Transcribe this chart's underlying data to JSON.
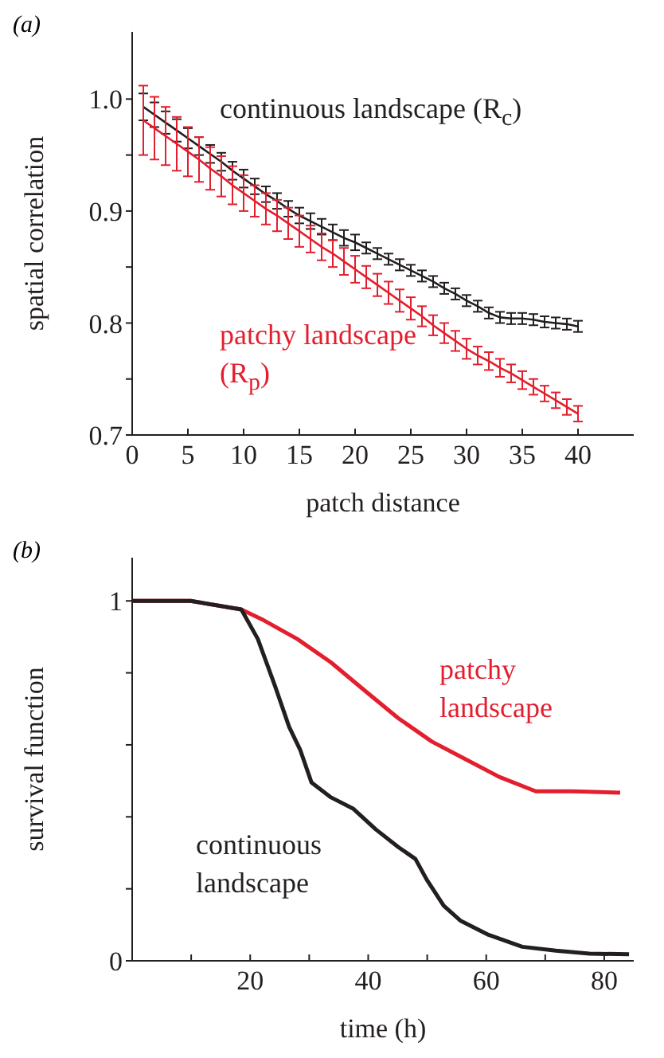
{
  "chart_data": [
    {
      "type": "line",
      "title": "(a)",
      "xlabel": "patch distance",
      "ylabel": "spatial correlation",
      "xlim": [
        0,
        45
      ],
      "xticks": [
        0,
        5,
        10,
        15,
        20,
        25,
        30,
        35,
        40
      ],
      "ylim": [
        0.7,
        1.06
      ],
      "yticks": [
        0.7,
        {
          "value": 0.75,
          "label": null
        },
        0.8,
        {
          "value": 0.85,
          "label": null
        },
        0.9,
        {
          "value": 0.95,
          "label": null
        },
        {
          "value": 1.0,
          "label": "1.0"
        }
      ],
      "series": [
        {
          "name": "continuous landscape (R$_{c}$)",
          "color": "#231f20",
          "x": [
            1,
            2,
            3,
            4,
            5,
            6,
            7,
            8,
            9,
            10,
            11,
            12,
            13,
            14,
            15,
            16,
            17,
            18,
            19,
            20,
            21,
            22,
            23,
            24,
            25,
            26,
            27,
            28,
            29,
            30,
            31,
            32,
            33,
            34,
            35,
            36,
            37,
            38,
            39,
            40
          ],
          "values": [
            0.993,
            0.986,
            0.979,
            0.972,
            0.965,
            0.958,
            0.951,
            0.944,
            0.936,
            0.929,
            0.922,
            0.915,
            0.909,
            0.902,
            0.896,
            0.891,
            0.886,
            0.881,
            0.876,
            0.872,
            0.867,
            0.862,
            0.857,
            0.852,
            0.847,
            0.842,
            0.837,
            0.831,
            0.826,
            0.82,
            0.815,
            0.809,
            0.805,
            0.804,
            0.804,
            0.803,
            0.801,
            0.8,
            0.799,
            0.797
          ],
          "errors": [
            0.012,
            0.011,
            0.01,
            0.01,
            0.009,
            0.008,
            0.008,
            0.008,
            0.008,
            0.008,
            0.007,
            0.007,
            0.007,
            0.007,
            0.007,
            0.007,
            0.007,
            0.007,
            0.007,
            0.007,
            0.005,
            0.005,
            0.005,
            0.005,
            0.005,
            0.005,
            0.005,
            0.005,
            0.005,
            0.005,
            0.005,
            0.005,
            0.005,
            0.005,
            0.005,
            0.005,
            0.005,
            0.005,
            0.005,
            0.005
          ]
        },
        {
          "name": "patchy landscape (R$_{p}$)",
          "color": "#e31e2d",
          "x": [
            1,
            2,
            3,
            4,
            5,
            6,
            7,
            8,
            9,
            10,
            11,
            12,
            13,
            14,
            15,
            16,
            17,
            18,
            19,
            20,
            21,
            22,
            23,
            24,
            25,
            26,
            27,
            28,
            29,
            30,
            31,
            32,
            33,
            34,
            35,
            36,
            37,
            38,
            39,
            40
          ],
          "values": [
            0.981,
            0.974,
            0.967,
            0.96,
            0.953,
            0.946,
            0.938,
            0.931,
            0.923,
            0.916,
            0.909,
            0.902,
            0.896,
            0.889,
            0.882,
            0.875,
            0.868,
            0.862,
            0.855,
            0.848,
            0.841,
            0.834,
            0.827,
            0.82,
            0.813,
            0.806,
            0.798,
            0.791,
            0.784,
            0.777,
            0.771,
            0.766,
            0.76,
            0.755,
            0.749,
            0.743,
            0.737,
            0.731,
            0.725,
            0.719
          ],
          "errors": [
            0.031,
            0.028,
            0.026,
            0.024,
            0.022,
            0.02,
            0.019,
            0.018,
            0.017,
            0.016,
            0.014,
            0.014,
            0.014,
            0.014,
            0.014,
            0.012,
            0.012,
            0.012,
            0.012,
            0.012,
            0.01,
            0.01,
            0.01,
            0.01,
            0.01,
            0.009,
            0.009,
            0.009,
            0.009,
            0.009,
            0.008,
            0.008,
            0.008,
            0.008,
            0.008,
            0.007,
            0.007,
            0.007,
            0.007,
            0.007
          ]
        }
      ]
    },
    {
      "type": "line",
      "title": "(b)",
      "xlabel": "time (h)",
      "ylabel": "survival function",
      "xlim": [
        0,
        85
      ],
      "xticks": [
        {
          "value": 0,
          "label": null
        },
        {
          "value": 10,
          "label": null
        },
        20,
        {
          "value": 30,
          "label": null
        },
        40,
        {
          "value": 50,
          "label": null
        },
        60,
        {
          "value": 70,
          "label": null
        },
        80
      ],
      "ylim": [
        0,
        1.12
      ],
      "yticks": [
        0,
        {
          "value": 0.2,
          "label": null
        },
        {
          "value": 0.4,
          "label": null
        },
        {
          "value": 0.6,
          "label": null
        },
        {
          "value": 0.8,
          "label": null
        },
        1
      ],
      "series": [
        {
          "name": "patchy landscape",
          "color": "#e31e2d",
          "x": [
            0,
            9.9,
            18.5,
            22.3,
            28,
            33.7,
            39.4,
            45.1,
            50.8,
            56.5,
            62.2,
            68.4,
            74.6,
            82.7
          ],
          "values": [
            1.0,
            1.0,
            0.976,
            0.946,
            0.894,
            0.829,
            0.751,
            0.674,
            0.609,
            0.56,
            0.511,
            0.471,
            0.471,
            0.467
          ]
        },
        {
          "name": "continuous landscape",
          "color": "#231f20",
          "x": [
            0,
            9.9,
            18.5,
            21.3,
            24.2,
            26.6,
            28.5,
            30.4,
            33.7,
            37.5,
            41.3,
            45.1,
            48,
            49.9,
            52.8,
            55.6,
            60.4,
            66.1,
            71.8,
            77.5,
            84.2
          ],
          "values": [
            1.0,
            1.0,
            0.976,
            0.894,
            0.764,
            0.65,
            0.585,
            0.495,
            0.454,
            0.422,
            0.365,
            0.316,
            0.283,
            0.226,
            0.153,
            0.112,
            0.072,
            0.039,
            0.028,
            0.02,
            0.018
          ]
        }
      ]
    }
  ]
}
